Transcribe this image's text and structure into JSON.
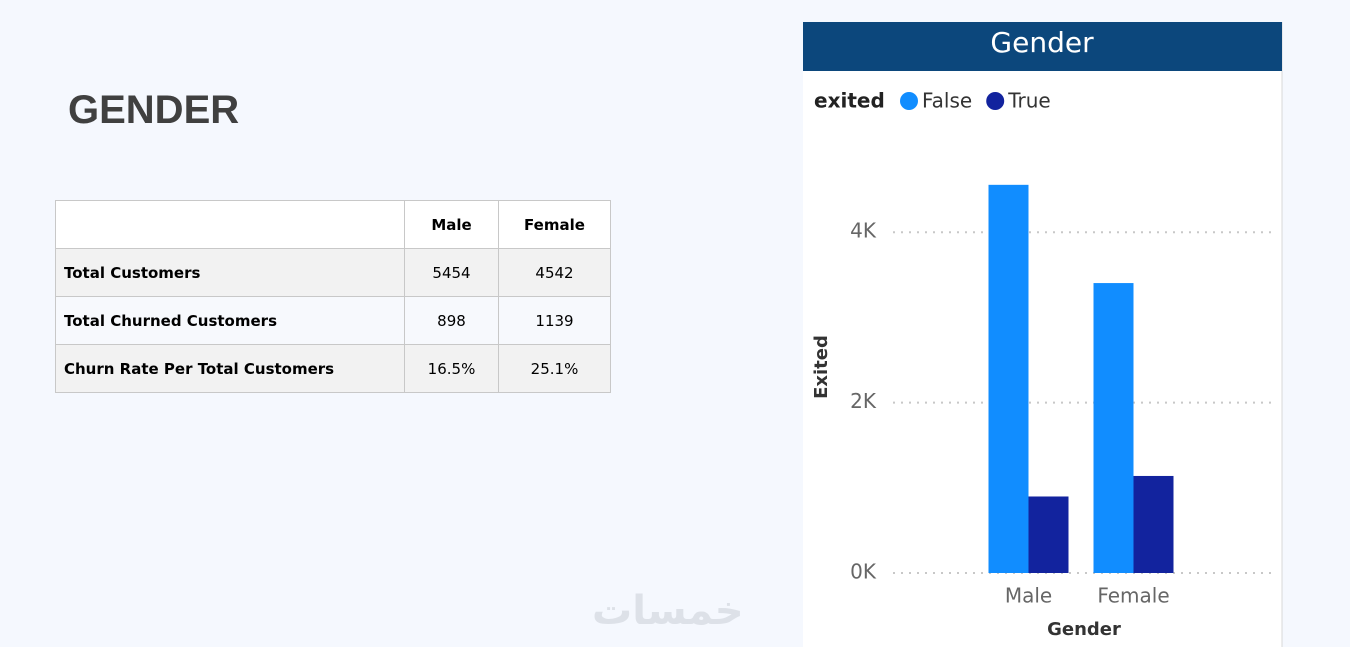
{
  "slide_title": "GENDER",
  "table": {
    "columns": [
      "Male",
      "Female"
    ],
    "rows": [
      {
        "label": "Total Customers",
        "values": [
          5454,
          4542
        ]
      },
      {
        "label": "Total Churned Customers",
        "values": [
          898,
          1139
        ]
      },
      {
        "label": "Churn Rate Per Total Customers",
        "values": [
          "16.5%",
          "25.1%"
        ]
      }
    ]
  },
  "watermark": "خمسات",
  "chart_data": {
    "type": "bar",
    "title": "Gender",
    "legend_title": "exited",
    "legend_position": "top-left",
    "x_label": "Gender",
    "y_label": "Exited",
    "categories": [
      "Male",
      "Female"
    ],
    "series": [
      {
        "name": "False",
        "color": "#118dff",
        "values": [
          4556,
          3403
        ]
      },
      {
        "name": "True",
        "color": "#12239e",
        "values": [
          898,
          1139
        ]
      }
    ],
    "ylim": [
      0,
      5000
    ],
    "yticks": [
      {
        "value": 0,
        "label": "0K"
      },
      {
        "value": 2000,
        "label": "2K"
      },
      {
        "value": 4000,
        "label": "4K"
      }
    ],
    "grid": true
  }
}
